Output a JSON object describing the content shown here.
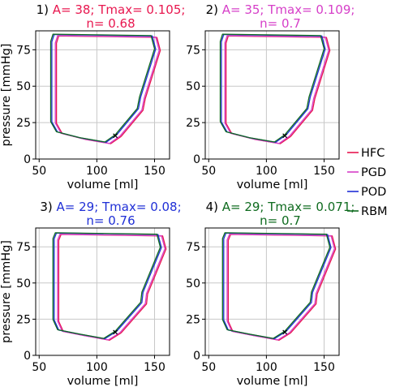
{
  "colors": {
    "HFC": "#e8174f",
    "PGD": "#d63fc8",
    "POD": "#1f2fd6",
    "RBM": "#0f6b1f",
    "axis": "#000000",
    "grid": "#c8c8c8",
    "marker": "#000000"
  },
  "legend": {
    "placement": "right",
    "entries": [
      {
        "label": "HFC",
        "key": "HFC"
      },
      {
        "label": "PGD",
        "key": "PGD"
      },
      {
        "label": "POD",
        "key": "POD"
      },
      {
        "label": "RBM",
        "key": "RBM"
      }
    ]
  },
  "chart_data": [
    {
      "type": "line",
      "title_prefix": "1)",
      "title_body": "A= 38; Tmax= 0.105;",
      "title_line2": "n= 0.68",
      "title_color_key": "HFC",
      "xlabel": "volume [ml]",
      "ylabel": "pressure [mmHg]",
      "xlim": [
        47,
        163
      ],
      "ylim": [
        0,
        88
      ],
      "xticks": [
        50,
        100,
        150
      ],
      "yticks": [
        0,
        25,
        50,
        75
      ],
      "grid": true,
      "marker_point": [
        116,
        16
      ],
      "series": [
        {
          "key": "HFC",
          "shift": [
            5,
            -0.5
          ],
          "points": [
            [
              116,
              16
            ],
            [
              135,
              34
            ],
            [
              137,
              42
            ],
            [
              150,
              75
            ],
            [
              147,
              84
            ],
            [
              62,
              85
            ],
            [
              60,
              80
            ],
            [
              60,
              25
            ],
            [
              65,
              18
            ],
            [
              85,
              14
            ],
            [
              107,
              11
            ],
            [
              116,
              16
            ]
          ]
        },
        {
          "key": "PGD",
          "shift": [
            4,
            -0.3
          ],
          "points": [
            [
              116,
              16
            ],
            [
              135,
              34
            ],
            [
              137,
              42
            ],
            [
              150,
              75
            ],
            [
              147,
              84
            ],
            [
              62,
              85
            ],
            [
              60,
              80
            ],
            [
              60,
              25
            ],
            [
              65,
              18
            ],
            [
              85,
              14
            ],
            [
              107,
              11
            ],
            [
              116,
              16
            ]
          ]
        },
        {
          "key": "POD",
          "shift": [
            1,
            0.5
          ],
          "points": [
            [
              116,
              16
            ],
            [
              135,
              34
            ],
            [
              137,
              42
            ],
            [
              150,
              75
            ],
            [
              147,
              84
            ],
            [
              62,
              85
            ],
            [
              60,
              80
            ],
            [
              60,
              25
            ],
            [
              65,
              18
            ],
            [
              85,
              14
            ],
            [
              107,
              11
            ],
            [
              116,
              16
            ]
          ]
        },
        {
          "key": "RBM",
          "shift": [
            0,
            0.7
          ],
          "points": [
            [
              116,
              16
            ],
            [
              135,
              34
            ],
            [
              137,
              42
            ],
            [
              150,
              75
            ],
            [
              147,
              84
            ],
            [
              62,
              85
            ],
            [
              60,
              80
            ],
            [
              60,
              25
            ],
            [
              65,
              18
            ],
            [
              85,
              14
            ],
            [
              107,
              11
            ],
            [
              116,
              16
            ]
          ]
        }
      ]
    },
    {
      "type": "line",
      "title_prefix": "2)",
      "title_body": "A= 35; Tmax= 0.109;",
      "title_line2": "n= 0.7",
      "title_color_key": "PGD",
      "xlabel": "volume [ml]",
      "ylabel": "",
      "xlim": [
        47,
        163
      ],
      "ylim": [
        0,
        88
      ],
      "xticks": [
        50,
        100,
        150
      ],
      "yticks": [
        0,
        25,
        50,
        75
      ],
      "grid": true,
      "marker_point": [
        116,
        16
      ],
      "series": [
        {
          "key": "HFC",
          "shift": [
            5,
            -0.5
          ],
          "points": [
            [
              116,
              16
            ],
            [
              135,
              34
            ],
            [
              137,
              42
            ],
            [
              150,
              75
            ],
            [
              147,
              84
            ],
            [
              62,
              85
            ],
            [
              60,
              80
            ],
            [
              60,
              25
            ],
            [
              65,
              18
            ],
            [
              85,
              14
            ],
            [
              107,
              11
            ],
            [
              116,
              16
            ]
          ]
        },
        {
          "key": "PGD",
          "shift": [
            4,
            -0.3
          ],
          "points": [
            [
              116,
              16
            ],
            [
              135,
              34
            ],
            [
              137,
              42
            ],
            [
              150,
              75
            ],
            [
              147,
              84
            ],
            [
              62,
              85
            ],
            [
              60,
              80
            ],
            [
              60,
              25
            ],
            [
              65,
              18
            ],
            [
              85,
              14
            ],
            [
              107,
              11
            ],
            [
              116,
              16
            ]
          ]
        },
        {
          "key": "POD",
          "shift": [
            1,
            0.5
          ],
          "points": [
            [
              116,
              16
            ],
            [
              135,
              34
            ],
            [
              137,
              42
            ],
            [
              150,
              75
            ],
            [
              147,
              84
            ],
            [
              62,
              85
            ],
            [
              60,
              80
            ],
            [
              60,
              25
            ],
            [
              65,
              18
            ],
            [
              85,
              14
            ],
            [
              107,
              11
            ],
            [
              116,
              16
            ]
          ]
        },
        {
          "key": "RBM",
          "shift": [
            0,
            0.7
          ],
          "points": [
            [
              116,
              16
            ],
            [
              135,
              34
            ],
            [
              137,
              42
            ],
            [
              150,
              75
            ],
            [
              147,
              84
            ],
            [
              62,
              85
            ],
            [
              60,
              80
            ],
            [
              60,
              25
            ],
            [
              65,
              18
            ],
            [
              85,
              14
            ],
            [
              107,
              11
            ],
            [
              116,
              16
            ]
          ]
        }
      ]
    },
    {
      "type": "line",
      "title_prefix": "3)",
      "title_body": "A= 29; Tmax= 0.08;",
      "title_line2": "n= 0.76",
      "title_color_key": "POD",
      "xlabel": "volume [ml]",
      "ylabel": "pressure [mmHg]",
      "xlim": [
        47,
        163
      ],
      "ylim": [
        0,
        88
      ],
      "xticks": [
        50,
        100,
        150
      ],
      "yticks": [
        0,
        25,
        50,
        75
      ],
      "grid": true,
      "marker_point": [
        116,
        16
      ],
      "series": [
        {
          "key": "HFC",
          "shift": [
            5,
            -0.5
          ],
          "points": [
            [
              116,
              16
            ],
            [
              138,
              36
            ],
            [
              139,
              43
            ],
            [
              155,
              74
            ],
            [
              152,
              83
            ],
            [
              64,
              84
            ],
            [
              62,
              80
            ],
            [
              62,
              24
            ],
            [
              66,
              17
            ],
            [
              85,
              14
            ],
            [
              106,
              11
            ],
            [
              116,
              16
            ]
          ]
        },
        {
          "key": "PGD",
          "shift": [
            4,
            -0.3
          ],
          "points": [
            [
              116,
              16
            ],
            [
              138,
              36
            ],
            [
              139,
              43
            ],
            [
              155,
              74
            ],
            [
              152,
              83
            ],
            [
              64,
              84
            ],
            [
              62,
              80
            ],
            [
              62,
              24
            ],
            [
              66,
              17
            ],
            [
              85,
              14
            ],
            [
              106,
              11
            ],
            [
              116,
              16
            ]
          ]
        },
        {
          "key": "POD",
          "shift": [
            1,
            0.5
          ],
          "points": [
            [
              116,
              16
            ],
            [
              138,
              36
            ],
            [
              139,
              43
            ],
            [
              155,
              74
            ],
            [
              152,
              83
            ],
            [
              64,
              84
            ],
            [
              62,
              80
            ],
            [
              62,
              24
            ],
            [
              66,
              17
            ],
            [
              85,
              14
            ],
            [
              106,
              11
            ],
            [
              116,
              16
            ]
          ]
        },
        {
          "key": "RBM",
          "shift": [
            0,
            0.7
          ],
          "points": [
            [
              116,
              16
            ],
            [
              138,
              36
            ],
            [
              139,
              43
            ],
            [
              155,
              74
            ],
            [
              152,
              83
            ],
            [
              64,
              84
            ],
            [
              62,
              80
            ],
            [
              62,
              24
            ],
            [
              66,
              17
            ],
            [
              85,
              14
            ],
            [
              106,
              11
            ],
            [
              116,
              16
            ]
          ]
        }
      ]
    },
    {
      "type": "line",
      "title_prefix": "4)",
      "title_body": "A= 29; Tmax= 0.071;",
      "title_line2": "n= 0.7",
      "title_color_key": "RBM",
      "xlabel": "volume [ml]",
      "ylabel": "",
      "xlim": [
        47,
        163
      ],
      "ylim": [
        0,
        88
      ],
      "xticks": [
        50,
        100,
        150
      ],
      "yticks": [
        0,
        25,
        50,
        75
      ],
      "grid": true,
      "marker_point": [
        116,
        16
      ],
      "series": [
        {
          "key": "HFC",
          "shift": [
            5,
            -0.5
          ],
          "points": [
            [
              116,
              16
            ],
            [
              138,
              36
            ],
            [
              139,
              43
            ],
            [
              155,
              74
            ],
            [
              152,
              83
            ],
            [
              64,
              84
            ],
            [
              62,
              80
            ],
            [
              62,
              24
            ],
            [
              66,
              17
            ],
            [
              85,
              14
            ],
            [
              106,
              11
            ],
            [
              116,
              16
            ]
          ]
        },
        {
          "key": "PGD",
          "shift": [
            4,
            -0.3
          ],
          "points": [
            [
              116,
              16
            ],
            [
              138,
              36
            ],
            [
              139,
              43
            ],
            [
              155,
              74
            ],
            [
              152,
              83
            ],
            [
              64,
              84
            ],
            [
              62,
              80
            ],
            [
              62,
              24
            ],
            [
              66,
              17
            ],
            [
              85,
              14
            ],
            [
              106,
              11
            ],
            [
              116,
              16
            ]
          ]
        },
        {
          "key": "POD",
          "shift": [
            1,
            0.5
          ],
          "points": [
            [
              116,
              16
            ],
            [
              138,
              36
            ],
            [
              139,
              43
            ],
            [
              155,
              74
            ],
            [
              152,
              83
            ],
            [
              64,
              84
            ],
            [
              62,
              80
            ],
            [
              62,
              24
            ],
            [
              66,
              17
            ],
            [
              85,
              14
            ],
            [
              106,
              11
            ],
            [
              116,
              16
            ]
          ]
        },
        {
          "key": "RBM",
          "shift": [
            0,
            0.7
          ],
          "points": [
            [
              116,
              16
            ],
            [
              138,
              36
            ],
            [
              139,
              43
            ],
            [
              155,
              74
            ],
            [
              152,
              83
            ],
            [
              64,
              84
            ],
            [
              62,
              80
            ],
            [
              62,
              24
            ],
            [
              66,
              17
            ],
            [
              85,
              14
            ],
            [
              106,
              11
            ],
            [
              116,
              16
            ]
          ]
        }
      ]
    }
  ]
}
